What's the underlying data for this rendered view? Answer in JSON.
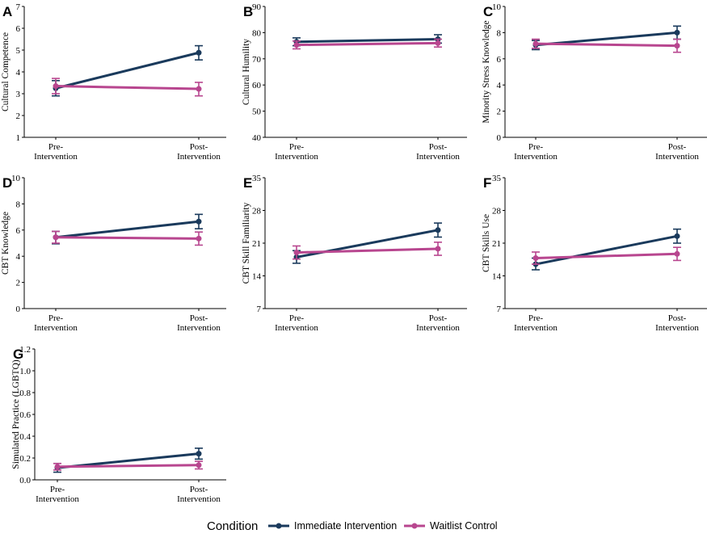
{
  "colors": {
    "immediate": "#1a3a5c",
    "waitlist": "#b8468f"
  },
  "legend": {
    "title": "Condition",
    "items": [
      {
        "key": "immediate",
        "label": "Immediate Intervention"
      },
      {
        "key": "waitlist",
        "label": "Waitlist Control"
      }
    ]
  },
  "chart_data": [
    {
      "panel": "A",
      "type": "line",
      "ylabel": "Cultural Competence",
      "ylim": [
        1,
        7
      ],
      "yticks": [
        "1",
        "2",
        "3",
        "4",
        "5",
        "6",
        "7"
      ],
      "x_categories": [
        [
          "Pre-",
          "Intervention"
        ],
        [
          "Post-",
          "Intervention"
        ]
      ],
      "series": [
        {
          "name": "Immediate Intervention",
          "color_key": "immediate",
          "values": [
            3.25,
            4.88
          ],
          "err_low": [
            2.9,
            4.55
          ],
          "err_high": [
            3.6,
            5.2
          ]
        },
        {
          "name": "Waitlist Control",
          "color_key": "waitlist",
          "values": [
            3.35,
            3.22
          ],
          "err_low": [
            3.0,
            2.9
          ],
          "err_high": [
            3.7,
            3.52
          ]
        }
      ]
    },
    {
      "panel": "B",
      "type": "line",
      "ylabel": "Cultural Humility",
      "ylim": [
        40,
        90
      ],
      "yticks": [
        "40",
        "50",
        "60",
        "70",
        "80",
        "90"
      ],
      "x_categories": [
        [
          "Pre-",
          "Intervention"
        ],
        [
          "Post-",
          "Intervention"
        ]
      ],
      "series": [
        {
          "name": "Immediate Intervention",
          "color_key": "immediate",
          "values": [
            76.5,
            77.5
          ],
          "err_low": [
            75.0,
            76.0
          ],
          "err_high": [
            78.0,
            79.2
          ]
        },
        {
          "name": "Waitlist Control",
          "color_key": "waitlist",
          "values": [
            75.3,
            76.0
          ],
          "err_low": [
            73.8,
            74.5
          ],
          "err_high": [
            76.8,
            77.5
          ]
        }
      ]
    },
    {
      "panel": "C",
      "type": "line",
      "ylabel": "Minority Stress Knowledge",
      "ylim": [
        0,
        10
      ],
      "yticks": [
        "0",
        "2",
        "4",
        "6",
        "8",
        "10"
      ],
      "x_categories": [
        [
          "Pre-",
          "Intervention"
        ],
        [
          "Post-",
          "Intervention"
        ]
      ],
      "series": [
        {
          "name": "Immediate Intervention",
          "color_key": "immediate",
          "values": [
            7.05,
            8.0
          ],
          "err_low": [
            6.7,
            7.5
          ],
          "err_high": [
            7.4,
            8.5
          ]
        },
        {
          "name": "Waitlist Control",
          "color_key": "waitlist",
          "values": [
            7.15,
            7.0
          ],
          "err_low": [
            6.8,
            6.5
          ],
          "err_high": [
            7.5,
            7.5
          ]
        }
      ]
    },
    {
      "panel": "D",
      "type": "line",
      "ylabel": "CBT Knowledge",
      "ylim": [
        0,
        10
      ],
      "yticks": [
        "0",
        "2",
        "4",
        "6",
        "8",
        "10"
      ],
      "x_categories": [
        [
          "Pre-",
          "Intervention"
        ],
        [
          "Post-",
          "Intervention"
        ]
      ],
      "series": [
        {
          "name": "Immediate Intervention",
          "color_key": "immediate",
          "values": [
            5.45,
            6.65
          ],
          "err_low": [
            4.95,
            6.1
          ],
          "err_high": [
            5.9,
            7.2
          ]
        },
        {
          "name": "Waitlist Control",
          "color_key": "waitlist",
          "values": [
            5.45,
            5.35
          ],
          "err_low": [
            5.0,
            4.85
          ],
          "err_high": [
            5.9,
            5.85
          ]
        }
      ]
    },
    {
      "panel": "E",
      "type": "line",
      "ylabel": "CBT Skill Familiarity",
      "ylim": [
        7,
        35
      ],
      "yticks": [
        "7",
        "14",
        "21",
        "28",
        "35"
      ],
      "x_categories": [
        [
          "Pre-",
          "Intervention"
        ],
        [
          "Post-",
          "Intervention"
        ]
      ],
      "series": [
        {
          "name": "Immediate Intervention",
          "color_key": "immediate",
          "values": [
            18.0,
            23.8
          ],
          "err_low": [
            16.7,
            22.3
          ],
          "err_high": [
            19.4,
            25.3
          ]
        },
        {
          "name": "Waitlist Control",
          "color_key": "waitlist",
          "values": [
            19.0,
            19.8
          ],
          "err_low": [
            17.6,
            18.4
          ],
          "err_high": [
            20.4,
            21.2
          ]
        }
      ]
    },
    {
      "panel": "F",
      "type": "line",
      "ylabel": "CBT Skills Use",
      "ylim": [
        7,
        35
      ],
      "yticks": [
        "7",
        "14",
        "21",
        "28",
        "35"
      ],
      "x_categories": [
        [
          "Pre-",
          "Intervention"
        ],
        [
          "Post-",
          "Intervention"
        ]
      ],
      "series": [
        {
          "name": "Immediate Intervention",
          "color_key": "immediate",
          "values": [
            16.5,
            22.5
          ],
          "err_low": [
            15.3,
            21.0
          ],
          "err_high": [
            17.8,
            24.0
          ]
        },
        {
          "name": "Waitlist Control",
          "color_key": "waitlist",
          "values": [
            17.8,
            18.7
          ],
          "err_low": [
            16.5,
            17.3
          ],
          "err_high": [
            19.1,
            20.1
          ]
        }
      ]
    },
    {
      "panel": "G",
      "type": "line",
      "ylabel": "Simulated Practice (LGBTQ)",
      "ylim": [
        0,
        1.2
      ],
      "yticks": [
        "0.0",
        "0.2",
        "0.4",
        "0.6",
        "0.8",
        "1.0",
        "1.2"
      ],
      "x_categories": [
        [
          "Pre-",
          "Intervention"
        ],
        [
          "Post-",
          "Intervention"
        ]
      ],
      "series": [
        {
          "name": "Immediate Intervention",
          "color_key": "immediate",
          "values": [
            0.11,
            0.24
          ],
          "err_low": [
            0.07,
            0.19
          ],
          "err_high": [
            0.15,
            0.29
          ]
        },
        {
          "name": "Waitlist Control",
          "color_key": "waitlist",
          "values": [
            0.12,
            0.135
          ],
          "err_low": [
            0.09,
            0.1
          ],
          "err_high": [
            0.15,
            0.17
          ]
        }
      ]
    }
  ]
}
